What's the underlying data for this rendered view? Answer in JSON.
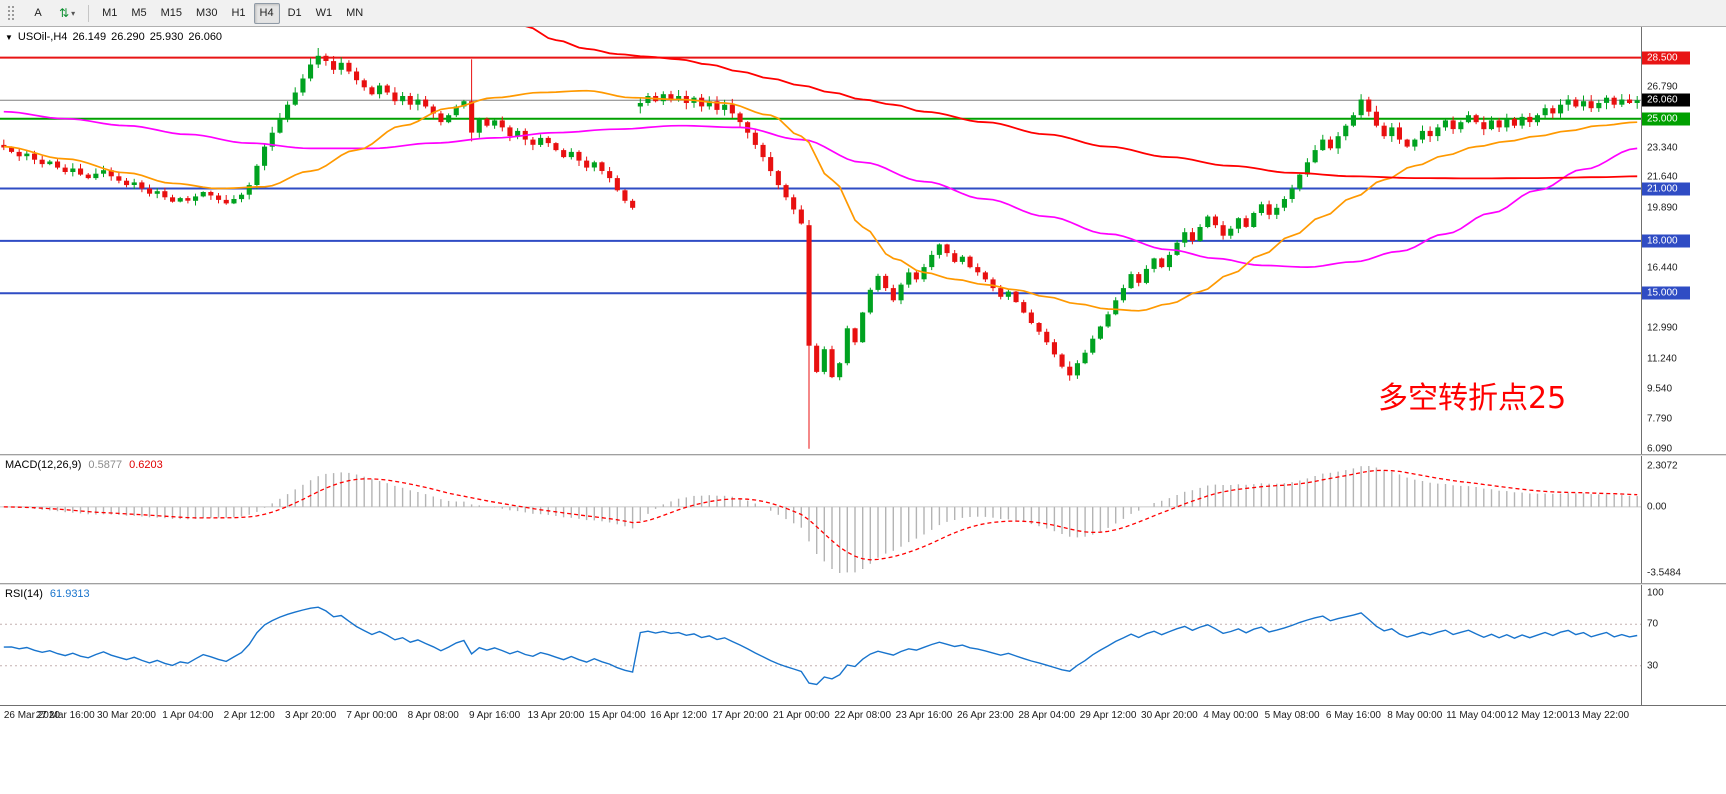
{
  "toolbar": {
    "a_label": "A",
    "timeframes": [
      "M1",
      "M5",
      "M15",
      "M30",
      "H1",
      "H4",
      "D1",
      "W1",
      "MN"
    ],
    "active_timeframe": "H4"
  },
  "icons": {
    "collapse": "▼",
    "chevron_down": "▾",
    "updown_arrows": "⇅"
  },
  "chart_data": {
    "type": "candlestick",
    "symbol": "USOil-,H4",
    "ohlc_current": {
      "open": "26.149",
      "high": "26.290",
      "low": "25.930",
      "close": "26.060"
    },
    "annotation": {
      "text": "多空转折点25",
      "color": "#ff0000"
    },
    "price_range": {
      "min": 5.8,
      "max": 30.25
    },
    "first_open": 23.5,
    "closes": [
      23.35,
      23.1,
      22.85,
      23.0,
      22.65,
      22.4,
      22.55,
      22.2,
      21.95,
      22.15,
      21.8,
      21.6,
      21.85,
      22.05,
      21.7,
      21.45,
      21.2,
      21.35,
      21.0,
      20.7,
      20.85,
      20.5,
      20.25,
      20.45,
      20.3,
      20.55,
      20.8,
      20.6,
      20.35,
      20.15,
      20.4,
      20.65,
      21.2,
      22.3,
      23.4,
      24.2,
      25.0,
      25.8,
      26.5,
      27.3,
      28.1,
      28.6,
      28.3,
      27.8,
      28.2,
      27.7,
      27.2,
      26.8,
      26.4,
      26.9,
      26.5,
      26.0,
      26.3,
      25.8,
      26.1,
      25.7,
      25.3,
      24.8,
      25.2,
      25.7,
      26.0,
      24.2,
      25.0,
      24.6,
      24.9,
      24.5,
      24.0,
      24.3,
      23.8,
      23.5,
      23.9,
      23.6,
      23.2,
      22.8,
      23.1,
      22.6,
      22.2,
      22.5,
      22.0,
      21.6,
      20.9,
      20.3,
      19.9,
      25.9,
      26.3,
      26.0,
      26.4,
      26.1,
      26.3,
      25.9,
      26.2,
      25.7,
      26.0,
      25.5,
      25.8,
      25.3,
      24.8,
      24.2,
      23.5,
      22.8,
      22.0,
      21.2,
      20.5,
      19.8,
      19.0,
      12.0,
      10.5,
      11.8,
      10.2,
      11.0,
      13.0,
      12.2,
      13.9,
      15.2,
      16.0,
      15.3,
      14.6,
      15.5,
      16.2,
      15.8,
      16.5,
      17.2,
      17.8,
      17.3,
      16.8,
      17.1,
      16.5,
      16.2,
      15.8,
      15.3,
      14.8,
      15.1,
      14.5,
      13.9,
      13.3,
      12.8,
      12.2,
      11.5,
      10.8,
      10.3,
      11.0,
      11.6,
      12.4,
      13.1,
      13.8,
      14.6,
      15.3,
      16.1,
      15.6,
      16.4,
      17.0,
      16.5,
      17.2,
      17.9,
      18.5,
      18.0,
      18.8,
      19.4,
      18.9,
      18.3,
      18.7,
      19.3,
      18.8,
      19.6,
      20.1,
      19.5,
      19.9,
      20.4,
      21.0,
      21.8,
      22.5,
      23.2,
      23.8,
      23.3,
      24.0,
      24.6,
      25.2,
      26.1,
      25.4,
      24.6,
      24.0,
      24.5,
      23.8,
      23.4,
      23.8,
      24.3,
      24.0,
      24.5,
      24.9,
      24.4,
      24.8,
      25.2,
      24.8,
      24.4,
      24.9,
      24.5,
      25.0,
      24.6,
      25.1,
      24.8,
      25.2,
      25.6,
      25.3,
      25.8,
      26.1,
      25.7,
      26.0,
      25.6,
      25.9,
      26.2,
      25.8,
      26.1,
      25.9,
      26.06
    ],
    "overrides": {
      "41": [
        28.1,
        29.05,
        27.9,
        28.6
      ],
      "61": [
        26.0,
        28.4,
        23.7,
        24.2
      ],
      "83": [
        25.7,
        26.2,
        25.3,
        25.9
      ],
      "105": [
        18.9,
        19.2,
        6.1,
        12.0
      ],
      "139": [
        10.8,
        11.1,
        10.0,
        10.3
      ],
      "177": [
        25.2,
        26.4,
        25.0,
        26.1
      ]
    },
    "hlines": [
      {
        "value": 26.06,
        "color": "#808080",
        "width": 1
      },
      {
        "value": 28.5,
        "color": "#e81414",
        "width": 2
      },
      {
        "value": 25.0,
        "color": "#00a000",
        "width": 2
      },
      {
        "value": 21.0,
        "color": "#2f4cc4",
        "width": 2
      },
      {
        "value": 18.0,
        "color": "#2f4cc4",
        "width": 2
      },
      {
        "value": 15.0,
        "color": "#2f4cc4",
        "width": 2
      }
    ],
    "ma_fast": [
      [
        0,
        23.4
      ],
      [
        8,
        22.7
      ],
      [
        16,
        21.9
      ],
      [
        22,
        21.3
      ],
      [
        28,
        21.0
      ],
      [
        34,
        21.1
      ],
      [
        40,
        22.0
      ],
      [
        46,
        23.2
      ],
      [
        52,
        24.6
      ],
      [
        58,
        25.6
      ],
      [
        64,
        26.2
      ],
      [
        70,
        26.5
      ],
      [
        76,
        26.6
      ],
      [
        82,
        26.2
      ],
      [
        88,
        26.1
      ],
      [
        94,
        25.9
      ],
      [
        100,
        25.2
      ],
      [
        104,
        24.0
      ],
      [
        108,
        21.5
      ],
      [
        112,
        18.8
      ],
      [
        116,
        17.0
      ],
      [
        120,
        16.2
      ],
      [
        124,
        15.8
      ],
      [
        128,
        15.5
      ],
      [
        132,
        15.2
      ],
      [
        136,
        14.8
      ],
      [
        140,
        14.4
      ],
      [
        144,
        14.1
      ],
      [
        148,
        14.0
      ],
      [
        152,
        14.4
      ],
      [
        156,
        15.1
      ],
      [
        160,
        16.1
      ],
      [
        164,
        17.2
      ],
      [
        168,
        18.3
      ],
      [
        172,
        19.4
      ],
      [
        176,
        20.5
      ],
      [
        180,
        21.5
      ],
      [
        184,
        22.3
      ],
      [
        188,
        22.9
      ],
      [
        192,
        23.4
      ],
      [
        196,
        23.7
      ],
      [
        200,
        24.0
      ],
      [
        204,
        24.3
      ],
      [
        208,
        24.6
      ],
      [
        213,
        24.8
      ]
    ],
    "ma_mid": [
      [
        0,
        25.4
      ],
      [
        8,
        25.0
      ],
      [
        16,
        24.6
      ],
      [
        24,
        24.1
      ],
      [
        32,
        23.6
      ],
      [
        40,
        23.3
      ],
      [
        48,
        23.3
      ],
      [
        56,
        23.6
      ],
      [
        64,
        23.9
      ],
      [
        72,
        24.2
      ],
      [
        80,
        24.4
      ],
      [
        88,
        24.6
      ],
      [
        96,
        24.5
      ],
      [
        104,
        23.8
      ],
      [
        112,
        22.5
      ],
      [
        120,
        21.4
      ],
      [
        128,
        20.4
      ],
      [
        136,
        19.4
      ],
      [
        144,
        18.4
      ],
      [
        152,
        17.5
      ],
      [
        158,
        17.0
      ],
      [
        164,
        16.6
      ],
      [
        170,
        16.5
      ],
      [
        176,
        16.8
      ],
      [
        182,
        17.4
      ],
      [
        188,
        18.4
      ],
      [
        194,
        19.6
      ],
      [
        200,
        20.9
      ],
      [
        206,
        22.1
      ],
      [
        213,
        23.3
      ]
    ],
    "ma_slow": [
      [
        64,
        31.4
      ],
      [
        68,
        30.3
      ],
      [
        72,
        29.5
      ],
      [
        76,
        29.0
      ],
      [
        80,
        28.7
      ],
      [
        84,
        28.55
      ],
      [
        88,
        28.4
      ],
      [
        92,
        28.1
      ],
      [
        96,
        27.7
      ],
      [
        100,
        27.3
      ],
      [
        104,
        26.9
      ],
      [
        108,
        26.5
      ],
      [
        112,
        26.1
      ],
      [
        116,
        25.8
      ],
      [
        120,
        25.4
      ],
      [
        128,
        24.8
      ],
      [
        136,
        24.1
      ],
      [
        144,
        23.4
      ],
      [
        152,
        22.8
      ],
      [
        160,
        22.3
      ],
      [
        168,
        21.9
      ],
      [
        176,
        21.7
      ],
      [
        184,
        21.6
      ],
      [
        192,
        21.58
      ],
      [
        200,
        21.6
      ],
      [
        208,
        21.65
      ],
      [
        213,
        21.7
      ]
    ],
    "price_ticks": {
      "labels": [
        "26.790",
        "23.340",
        "21.640",
        "19.890",
        "16.440",
        "12.990",
        "11.240",
        "9.540",
        "7.790",
        "6.090"
      ],
      "values": [
        26.79,
        23.34,
        21.64,
        19.89,
        16.44,
        12.99,
        11.24,
        9.54,
        7.79,
        6.09
      ]
    },
    "price_badges": [
      {
        "label": "28.500",
        "value": 28.5,
        "color": "#e81414"
      },
      {
        "label": "26.060",
        "value": 26.06,
        "color": "#000000"
      },
      {
        "label": "25.000",
        "value": 25.0,
        "color": "#00a000"
      },
      {
        "label": "21.000",
        "value": 21.0,
        "color": "#2f4cc4"
      },
      {
        "label": "18.000",
        "value": 18.0,
        "color": "#2f4cc4"
      },
      {
        "label": "15.000",
        "value": 15.0,
        "color": "#2f4cc4"
      }
    ],
    "time_labels": [
      "26 Mar 2020",
      "27 Mar 16:00",
      "30 Mar 20:00",
      "1 Apr 04:00",
      "2 Apr 12:00",
      "3 Apr 20:00",
      "7 Apr 00:00",
      "8 Apr 08:00",
      "9 Apr 16:00",
      "13 Apr 20:00",
      "15 Apr 04:00",
      "16 Apr 12:00",
      "17 Apr 20:00",
      "21 Apr 00:00",
      "22 Apr 08:00",
      "23 Apr 16:00",
      "26 Apr 23:00",
      "28 Apr 04:00",
      "29 Apr 12:00",
      "30 Apr 20:00",
      "4 May 00:00",
      "5 May 08:00",
      "6 May 16:00",
      "8 May 00:00",
      "11 May 04:00",
      "12 May 12:00",
      "13 May 22:00"
    ],
    "macd": {
      "label": "MACD(12,26,9)",
      "value_main": "0.5877",
      "value_signal": "0.6203",
      "axis_labels": [
        "2.3072",
        "0.00",
        "-3.5484"
      ],
      "params": {
        "fast": 12,
        "slow": 26,
        "signal": 9
      }
    },
    "rsi": {
      "label": "RSI(14)",
      "value": "61.9313",
      "period": 14,
      "axis_labels": [
        "100",
        "70",
        "30"
      ],
      "levels": [
        70,
        30
      ]
    },
    "colors": {
      "up": "#00a220",
      "down": "#e81010",
      "ma_fast": "#ff9900",
      "ma_mid": "#ff00ff",
      "ma_slow": "#ff0000",
      "macd_hist": "#b4b4b4",
      "macd_signal": "#ff0000",
      "rsi": "#1874cd",
      "bid_line": "#808080"
    }
  }
}
